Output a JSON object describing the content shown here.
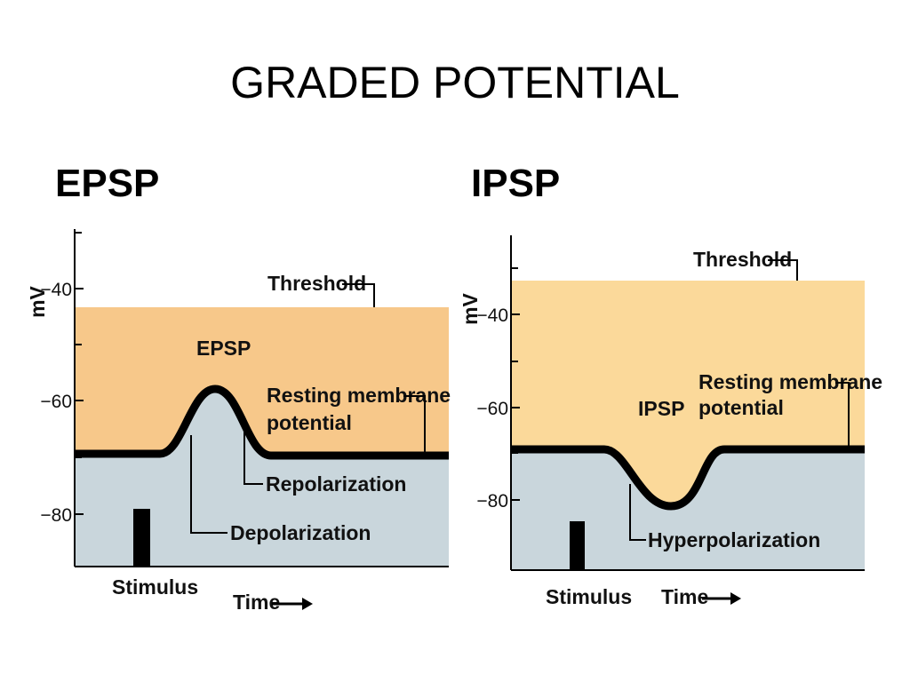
{
  "title": "GRADED POTENTIAL",
  "panels": {
    "epsp": {
      "heading": "EPSP",
      "y_axis_label": "mV",
      "ticks": [
        "−40",
        "−60",
        "−80"
      ],
      "curve_label": "EPSP",
      "threshold_label": "Threshold",
      "resting_label_line1": "Resting membrane",
      "resting_label_line2": "potential",
      "repolarization_label": "Repolarization",
      "depolarization_label": "Depolarization",
      "stimulus_label": "Stimulus",
      "time_label": "Time"
    },
    "ipsp": {
      "heading": "IPSP",
      "y_axis_label": "mV",
      "ticks": [
        "−40",
        "−60",
        "−80"
      ],
      "curve_label": "IPSP",
      "threshold_label": "Threshold",
      "resting_label_line1": "Resting membrane",
      "resting_label_line2": "potential",
      "hyperpolarization_label": "Hyperpolarization",
      "stimulus_label": "Stimulus",
      "time_label": "Time"
    }
  },
  "colors": {
    "above_rest": "#f7c88a",
    "below_rest": "#c9d6dc",
    "ipsp_above_rest": "#fbd99a",
    "line": "#000000"
  }
}
